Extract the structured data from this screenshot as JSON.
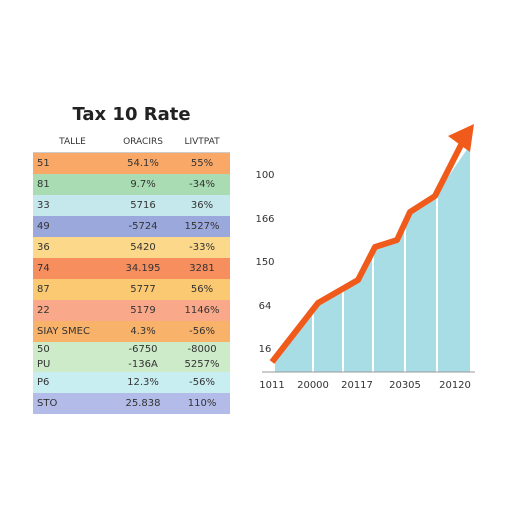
{
  "title": "Tax 10 Rate",
  "table": {
    "headers": [
      "TALLE",
      "ORACIRS",
      "LIVTPAT"
    ],
    "rows": [
      [
        "51",
        "54.1%",
        "55%"
      ],
      [
        "81",
        "9.7%",
        "-34%"
      ],
      [
        "33",
        "5716",
        "36%"
      ],
      [
        "49",
        "-5724",
        "1527%"
      ],
      [
        "36",
        "5420",
        "-33%"
      ],
      [
        "74",
        "34.195",
        "3281"
      ],
      [
        "87",
        "5777",
        "56%"
      ],
      [
        "22",
        "5179",
        "1146%"
      ],
      [
        "SIAY SMEC",
        "4.3%",
        "-56%"
      ],
      [
        "50",
        "-6750",
        "-8000"
      ],
      [
        "PU",
        "-136A",
        "5257%"
      ],
      [
        "P6",
        "12.3%",
        "-56%"
      ],
      [
        "STO",
        "25.838",
        "110%"
      ]
    ]
  },
  "chart": {
    "y_labels": [
      "100",
      "166",
      "150",
      "64",
      "16"
    ],
    "x_labels": [
      "1011",
      "20000",
      "20117",
      "20305",
      "20120"
    ]
  }
}
